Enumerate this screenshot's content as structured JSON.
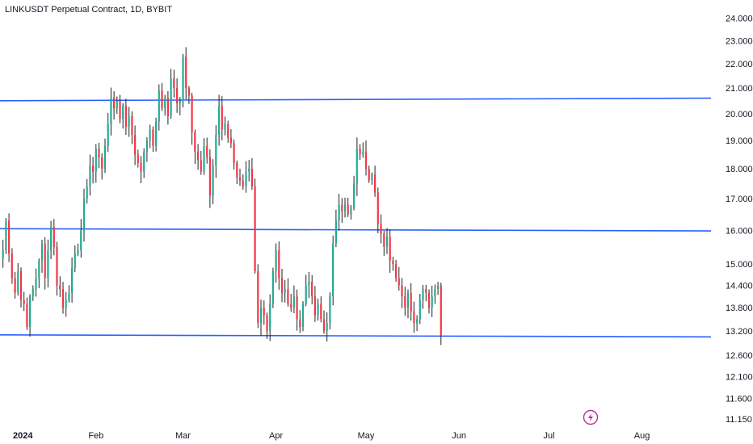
{
  "header": {
    "title": "LINKUSDT Perpetual Contract, 1D, BYBIT"
  },
  "colors": {
    "up": "#22ab94",
    "down": "#f23645",
    "wick": "#222222",
    "level": "#2962ff",
    "badge": "#b5338a"
  },
  "chart_data": {
    "type": "candlestick",
    "title": "LINKUSDT Perpetual Contract, 1D, BYBIT",
    "y_scale": "log",
    "ylim": [
      11.0,
      24.4
    ],
    "y_ticks": [
      "24.000",
      "23.000",
      "22.000",
      "21.000",
      "20.000",
      "19.000",
      "18.000",
      "17.000",
      "16.000",
      "15.000",
      "14.400",
      "13.800",
      "13.200",
      "12.600",
      "12.100",
      "11.600",
      "11.150"
    ],
    "x_ticks": [
      {
        "label": "2024",
        "date": "2024-01-01",
        "bold": true
      },
      {
        "label": "Feb",
        "date": "2024-02-01"
      },
      {
        "label": "Mar",
        "date": "2024-03-01"
      },
      {
        "label": "Apr",
        "date": "2024-04-01"
      },
      {
        "label": "May",
        "date": "2024-05-01"
      },
      {
        "label": "Jun",
        "date": "2024-06-01"
      },
      {
        "label": "Jul",
        "date": "2024-07-01"
      },
      {
        "label": "Aug",
        "date": "2024-08-01"
      }
    ],
    "x_range": [
      "2023-12-31",
      "2024-08-24"
    ],
    "levels": [
      {
        "start": 20.5,
        "end": 20.6
      },
      {
        "start": 16.05,
        "end": 15.98
      },
      {
        "start": 13.1,
        "end": 13.05
      }
    ],
    "closes": [
      15.4,
      16.3,
      15.3,
      14.6,
      14.2,
      14.8,
      14.0,
      13.9,
      13.3,
      14.1,
      14.3,
      14.6,
      15.1,
      15.6,
      14.6,
      15.4,
      16.1,
      15.5,
      14.4,
      14.3,
      13.8,
      14.0,
      14.2,
      14.9,
      15.3,
      15.4,
      16.0,
      17.0,
      17.4,
      18.1,
      17.9,
      18.7,
      18.4,
      18.0,
      18.8,
      19.6,
      20.6,
      20.2,
      20.5,
      19.8,
      20.3,
      19.5,
      19.9,
      19.2,
      18.5,
      18.2,
      17.9,
      18.6,
      19.0,
      19.4,
      18.8,
      19.7,
      20.9,
      20.2,
      20.6,
      19.9,
      21.4,
      21.0,
      20.4,
      20.5,
      22.3,
      21.0,
      20.7,
      19.3,
      18.6,
      18.3,
      17.9,
      18.8,
      18.4,
      17.1,
      18.1,
      19.2,
      20.3,
      19.4,
      19.6,
      19.1,
      18.9,
      18.2,
      17.7,
      17.6,
      17.4,
      17.9,
      18.0,
      17.4,
      14.8,
      13.4,
      13.8,
      13.6,
      13.2,
      13.9,
      14.8,
      15.4,
      14.6,
      14.2,
      14.3,
      13.9,
      13.8,
      14.1,
      13.5,
      13.3,
      13.9,
      14.4,
      14.5,
      14.1,
      13.6,
      13.9,
      13.5,
      13.2,
      13.4,
      14.1,
      15.6,
      16.3,
      16.8,
      16.6,
      16.8,
      16.5,
      16.7,
      17.5,
      18.7,
      18.5,
      18.6,
      18.0,
      17.6,
      17.8,
      17.2,
      16.2,
      15.9,
      15.5,
      15.8,
      15.1,
      15.0,
      14.6,
      14.4,
      14.1,
      13.8,
      14.2,
      13.7,
      13.4,
      13.5,
      14.0,
      14.3,
      14.2,
      13.8,
      14.1,
      14.3,
      14.4,
      13.1
    ]
  }
}
